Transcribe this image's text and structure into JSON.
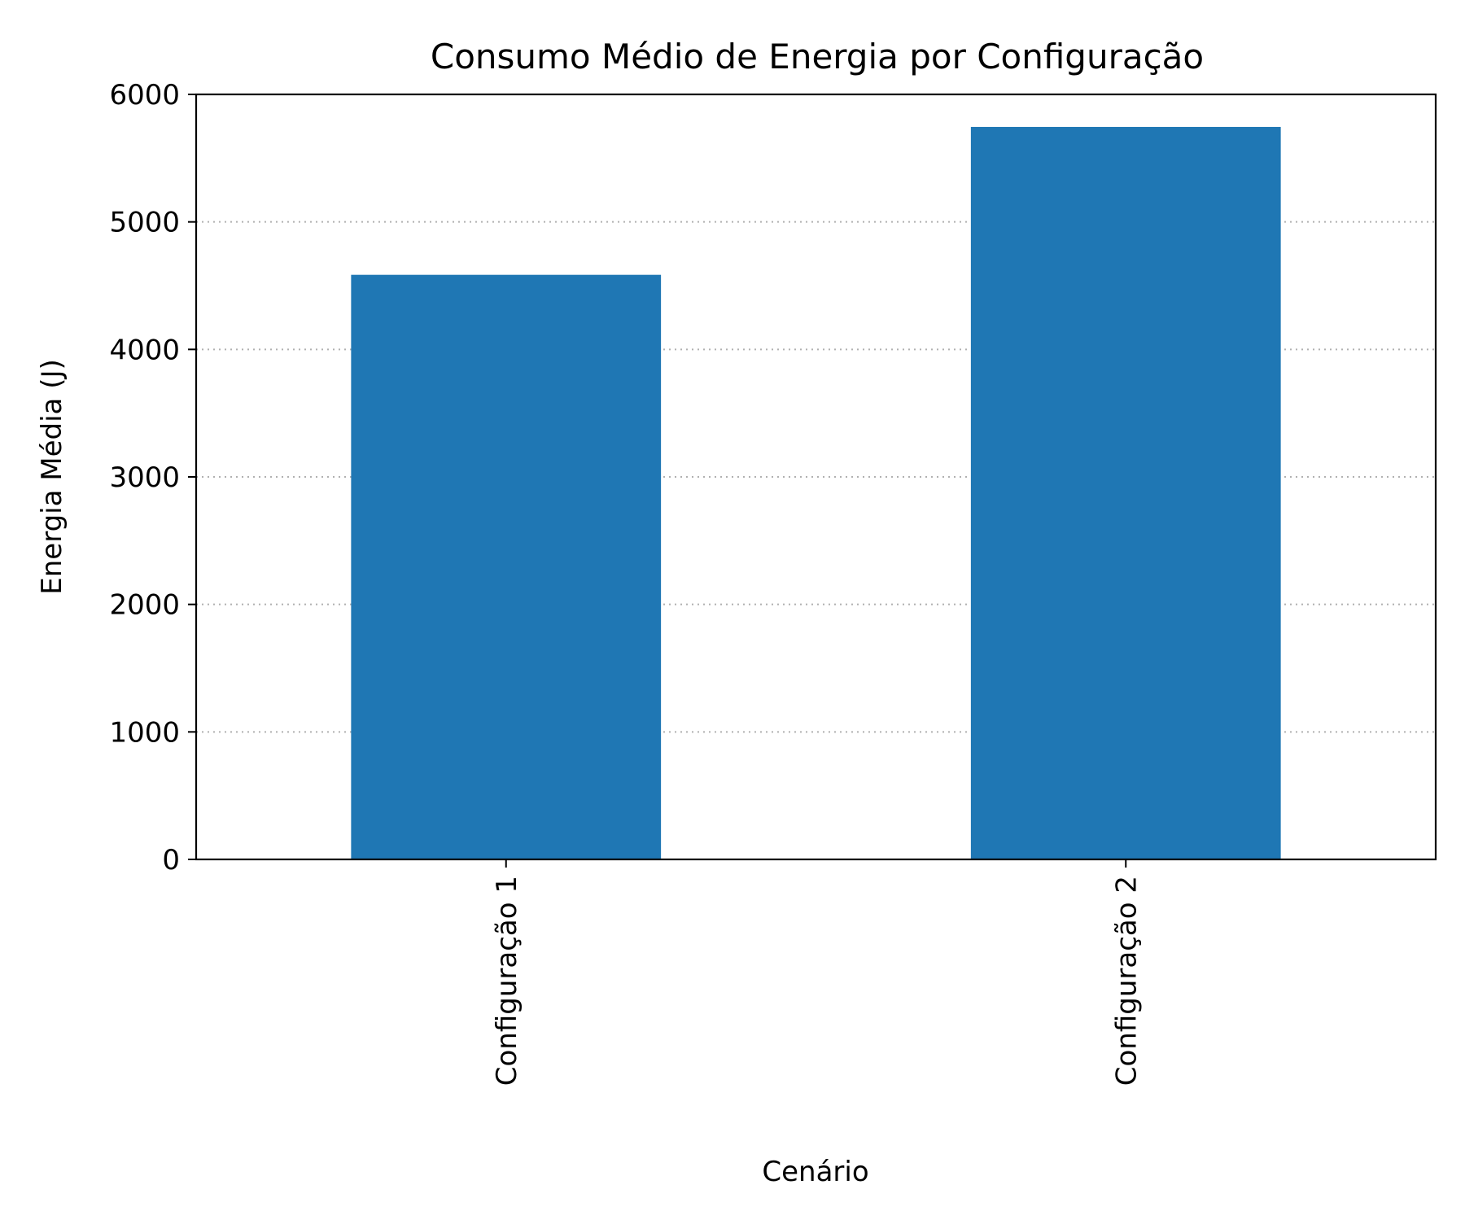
{
  "chart_data": {
    "type": "bar",
    "title": "Consumo Médio de Energia por Configuração",
    "xlabel": "Cenário",
    "ylabel": "Energia Média (J)",
    "categories": [
      "Configuração 1",
      "Configuração 2"
    ],
    "values": [
      4585,
      5745
    ],
    "ylim": [
      0,
      6000
    ],
    "yticks": [
      0,
      1000,
      2000,
      3000,
      4000,
      5000,
      6000
    ],
    "grid": {
      "axis": "y",
      "style": "dotted"
    },
    "bar_color": "#1f77b4",
    "grid_color": "#b0b0b0"
  }
}
